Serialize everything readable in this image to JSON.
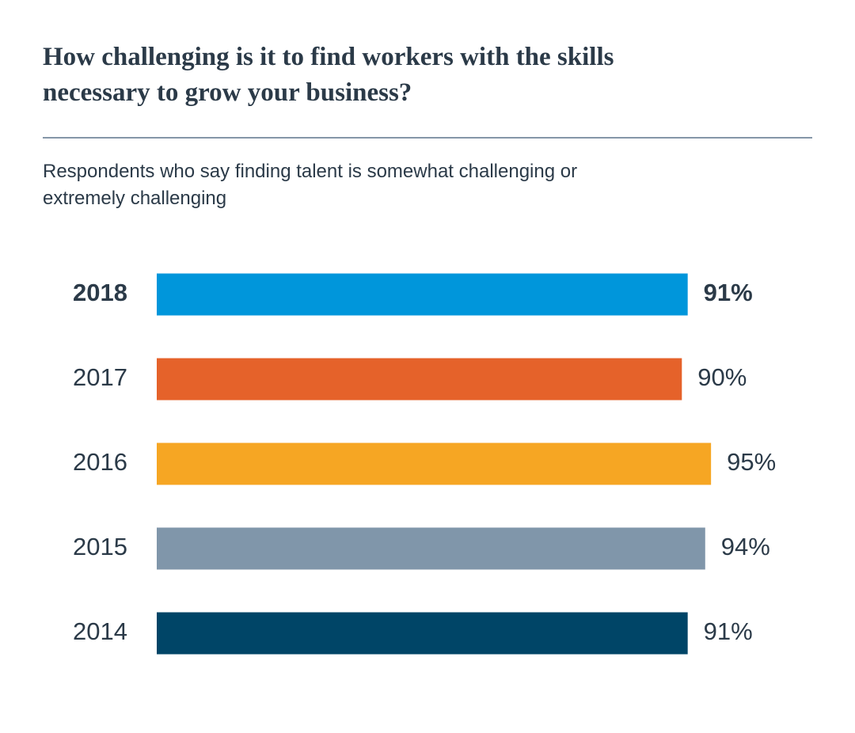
{
  "chart_data": {
    "type": "bar",
    "orientation": "horizontal",
    "title": "How challenging is it to find workers with the skills necessary to grow your business?",
    "subtitle": "Respondents who say finding talent is somewhat challenging or extremely challenging",
    "categories": [
      "2018",
      "2017",
      "2016",
      "2015",
      "2014"
    ],
    "values": [
      91,
      90,
      95,
      94,
      91
    ],
    "value_labels": [
      "91%",
      "90%",
      "95%",
      "94%",
      "91%"
    ],
    "colors": [
      "#0096db",
      "#e5622a",
      "#f6a623",
      "#8096aa",
      "#004567"
    ],
    "xlim": [
      0,
      100
    ]
  }
}
